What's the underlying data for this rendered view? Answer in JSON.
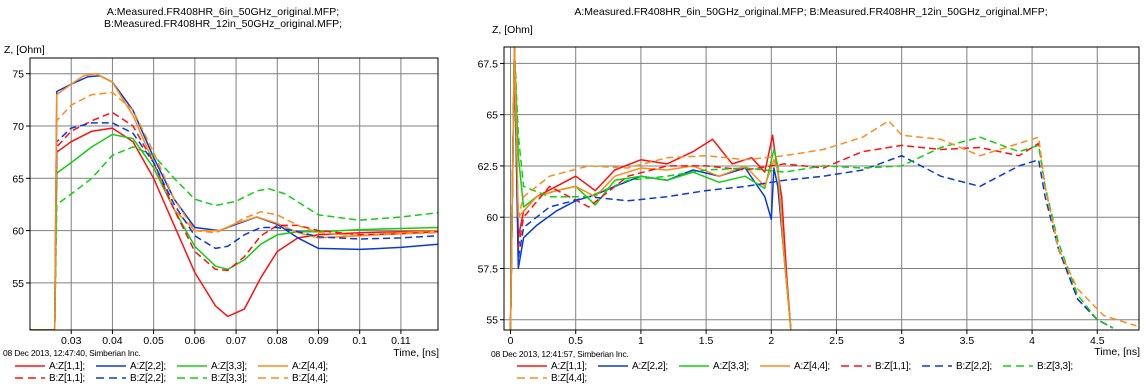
{
  "chart_data": [
    {
      "type": "line",
      "title": "A:Measured.FR408HR_6in_50GHz_original.MFP;\nB:Measured.FR408HR_12in_50GHz_original.MFP;",
      "title_lines": [
        "A:Measured.FR408HR_6in_50GHz_original.MFP;",
        "B:Measured.FR408HR_12in_50GHz_original.MFP;"
      ],
      "ylabel": "Z, [Ohm]",
      "xlabel": "Time, [ns]",
      "footer": "08 Dec 2013, 12:47:40, Simberian Inc.",
      "xlim": [
        0.02,
        0.119
      ],
      "ylim": [
        50.5,
        76.5
      ],
      "xticks": [
        0.03,
        0.04,
        0.05,
        0.06,
        0.07,
        0.08,
        0.09,
        0.1,
        0.11
      ],
      "xtick_labels": [
        "0.03",
        "0.04",
        "0.05",
        "0.06",
        "0.07",
        "0.08",
        "0.09",
        "0.1",
        "0.11"
      ],
      "yticks": [
        55,
        60,
        65,
        70,
        75
      ],
      "ytick_labels": [
        "55",
        "60",
        "65",
        "70",
        "75"
      ],
      "grid": true,
      "legend_position": "bottom",
      "legend_rows": [
        [
          0,
          1,
          2,
          3
        ],
        [
          4,
          5,
          6,
          7
        ]
      ],
      "series": [
        {
          "name": "A:Z[1,1];",
          "color": "#ff1010",
          "dash": false,
          "x": [
            0.02,
            0.026,
            0.0265,
            0.03,
            0.035,
            0.04,
            0.045,
            0.05,
            0.055,
            0.06,
            0.065,
            0.068,
            0.072,
            0.076,
            0.08,
            0.085,
            0.09,
            0.1,
            0.11,
            0.119
          ],
          "y": [
            50.5,
            50.5,
            67.5,
            68.5,
            69.5,
            69.8,
            68.5,
            65.0,
            60.5,
            56.0,
            52.8,
            51.8,
            52.5,
            55.5,
            58.0,
            59.3,
            59.6,
            59.8,
            59.9,
            60.0
          ]
        },
        {
          "name": "A:Z[2,2];",
          "color": "#0a3ad6",
          "dash": false,
          "x": [
            0.02,
            0.026,
            0.0265,
            0.03,
            0.034,
            0.037,
            0.04,
            0.045,
            0.05,
            0.055,
            0.06,
            0.066,
            0.07,
            0.075,
            0.08,
            0.085,
            0.09,
            0.1,
            0.11,
            0.119
          ],
          "y": [
            50.5,
            50.5,
            73.3,
            74.0,
            74.7,
            74.8,
            74.2,
            71.5,
            67.0,
            63.0,
            60.3,
            60.0,
            60.6,
            61.3,
            60.6,
            59.3,
            58.3,
            58.2,
            58.4,
            58.7
          ]
        },
        {
          "name": "A:Z[3,3];",
          "color": "#10d010",
          "dash": false,
          "x": [
            0.02,
            0.026,
            0.0265,
            0.03,
            0.035,
            0.04,
            0.045,
            0.05,
            0.055,
            0.06,
            0.065,
            0.068,
            0.072,
            0.076,
            0.08,
            0.085,
            0.09,
            0.1,
            0.11,
            0.119
          ],
          "y": [
            50.5,
            50.5,
            65.5,
            66.5,
            68.0,
            69.2,
            68.8,
            66.0,
            62.0,
            58.5,
            56.6,
            56.3,
            57.2,
            58.7,
            59.6,
            59.9,
            59.9,
            60.1,
            60.2,
            60.3
          ]
        },
        {
          "name": "A:Z[4,4];",
          "color": "#ff8c1a",
          "dash": false,
          "x": [
            0.02,
            0.026,
            0.0265,
            0.03,
            0.033,
            0.036,
            0.04,
            0.045,
            0.05,
            0.055,
            0.06,
            0.066,
            0.07,
            0.075,
            0.08,
            0.085,
            0.09,
            0.1,
            0.11,
            0.119
          ],
          "y": [
            50.5,
            50.5,
            73.0,
            74.0,
            74.8,
            75.0,
            74.2,
            71.0,
            66.5,
            62.0,
            60.0,
            60.0,
            60.7,
            61.3,
            60.7,
            59.8,
            59.3,
            59.5,
            59.8,
            60.0
          ]
        },
        {
          "name": "B:Z[1,1];",
          "color": "#ff1010",
          "dash": true,
          "x": [
            0.02,
            0.026,
            0.0265,
            0.03,
            0.035,
            0.04,
            0.045,
            0.05,
            0.055,
            0.06,
            0.065,
            0.068,
            0.072,
            0.076,
            0.08,
            0.085,
            0.09,
            0.1,
            0.11,
            0.119
          ],
          "y": [
            50.5,
            50.5,
            68.0,
            69.5,
            70.5,
            71.3,
            70.0,
            66.5,
            62.0,
            58.0,
            56.3,
            56.2,
            57.5,
            59.5,
            60.5,
            60.5,
            60.0,
            59.6,
            59.7,
            59.9
          ]
        },
        {
          "name": "B:Z[2,2];",
          "color": "#0a3ad6",
          "dash": true,
          "x": [
            0.02,
            0.026,
            0.0265,
            0.03,
            0.035,
            0.04,
            0.045,
            0.05,
            0.055,
            0.06,
            0.065,
            0.068,
            0.072,
            0.076,
            0.08,
            0.085,
            0.09,
            0.1,
            0.11,
            0.119
          ],
          "y": [
            50.5,
            50.5,
            68.5,
            69.8,
            70.3,
            70.3,
            69.3,
            66.5,
            62.5,
            59.5,
            58.3,
            58.5,
            59.6,
            60.3,
            60.3,
            59.9,
            59.4,
            59.2,
            59.3,
            59.5
          ]
        },
        {
          "name": "B:Z[3,3];",
          "color": "#10d010",
          "dash": true,
          "x": [
            0.02,
            0.026,
            0.0265,
            0.03,
            0.035,
            0.04,
            0.045,
            0.05,
            0.055,
            0.06,
            0.065,
            0.07,
            0.075,
            0.078,
            0.082,
            0.086,
            0.09,
            0.1,
            0.11,
            0.119
          ],
          "y": [
            50.5,
            50.5,
            62.5,
            63.5,
            65.0,
            67.2,
            68.0,
            67.2,
            65.0,
            63.0,
            62.4,
            62.8,
            63.8,
            64.0,
            63.5,
            62.5,
            61.5,
            61.0,
            61.3,
            61.7
          ]
        },
        {
          "name": "B:Z[4,4];",
          "color": "#ff8c1a",
          "dash": true,
          "x": [
            0.02,
            0.026,
            0.0265,
            0.03,
            0.035,
            0.04,
            0.045,
            0.05,
            0.055,
            0.06,
            0.065,
            0.068,
            0.072,
            0.076,
            0.08,
            0.085,
            0.09,
            0.1,
            0.11,
            0.119
          ],
          "y": [
            50.5,
            50.5,
            70.5,
            72.0,
            73.0,
            73.2,
            71.5,
            67.5,
            63.0,
            60.0,
            59.8,
            60.3,
            61.2,
            61.8,
            61.5,
            60.5,
            59.8,
            59.5,
            59.7,
            59.8
          ]
        }
      ]
    },
    {
      "type": "line",
      "title": "A:Measured.FR408HR_6in_50GHz_original.MFP; B:Measured.FR408HR_12in_50GHz_original.MFP;",
      "title_lines": [
        "A:Measured.FR408HR_6in_50GHz_original.MFP; B:Measured.FR408HR_12in_50GHz_original.MFP;"
      ],
      "ylabel": "Z, [Ohm]",
      "xlabel": "Time, [ns]",
      "footer": "08 Dec 2013, 12:41:57, Simberian Inc.",
      "xlim": [
        -0.05,
        4.82
      ],
      "ylim": [
        54.5,
        68.3
      ],
      "xticks": [
        0,
        0.5,
        1,
        1.5,
        2,
        2.5,
        3,
        3.5,
        4,
        4.5
      ],
      "xtick_labels": [
        "0",
        "0.5",
        "1",
        "1.5",
        "2",
        "2.5",
        "3",
        "3.5",
        "4",
        "4.5"
      ],
      "yticks": [
        55,
        57.5,
        60,
        62.5,
        65,
        67.5
      ],
      "ytick_labels": [
        "55",
        "57.5",
        "60",
        "62.5",
        "65",
        "67.5"
      ],
      "grid": true,
      "legend_position": "bottom",
      "legend_rows": [
        [
          0,
          1,
          2,
          3,
          4,
          5,
          6
        ],
        [
          7
        ]
      ],
      "series": [
        {
          "name": "A:Z[1,1];",
          "color": "#ff1010",
          "dash": false,
          "x": [
            0.0,
            0.03,
            0.06,
            0.1,
            0.2,
            0.35,
            0.5,
            0.65,
            0.8,
            1.0,
            1.2,
            1.4,
            1.55,
            1.7,
            1.85,
            1.95,
            2.01,
            2.04,
            2.08,
            2.12,
            2.15
          ],
          "y": [
            54.5,
            68.3,
            59.0,
            60.3,
            61.0,
            61.5,
            62.0,
            61.3,
            62.3,
            62.8,
            62.6,
            63.2,
            63.8,
            62.6,
            62.9,
            62.2,
            64.0,
            62.6,
            61.0,
            57.0,
            54.5
          ]
        },
        {
          "name": "A:Z[2,2];",
          "color": "#0a3ad6",
          "dash": false,
          "x": [
            0.0,
            0.03,
            0.06,
            0.1,
            0.2,
            0.35,
            0.5,
            0.65,
            0.8,
            1.0,
            1.2,
            1.4,
            1.6,
            1.8,
            1.95,
            2.0,
            2.02,
            2.05,
            2.1,
            2.15
          ],
          "y": [
            54.5,
            68.3,
            57.5,
            59.0,
            59.6,
            60.3,
            60.8,
            61.1,
            61.5,
            62.0,
            61.8,
            62.3,
            62.0,
            62.4,
            61.0,
            59.9,
            62.4,
            61.5,
            58.0,
            54.5
          ]
        },
        {
          "name": "A:Z[3,3];",
          "color": "#10d010",
          "dash": false,
          "x": [
            0.0,
            0.03,
            0.06,
            0.1,
            0.2,
            0.35,
            0.5,
            0.65,
            0.8,
            1.0,
            1.2,
            1.4,
            1.6,
            1.8,
            1.95,
            2.02,
            2.05,
            2.1,
            2.15
          ],
          "y": [
            54.5,
            68.3,
            63.0,
            60.5,
            61.0,
            61.3,
            61.5,
            60.6,
            61.8,
            62.0,
            61.8,
            62.2,
            61.7,
            62.0,
            61.4,
            63.3,
            62.5,
            58.0,
            54.5
          ]
        },
        {
          "name": "A:Z[4,4];",
          "color": "#ff8c1a",
          "dash": false,
          "x": [
            0.0,
            0.03,
            0.06,
            0.1,
            0.2,
            0.35,
            0.5,
            0.65,
            0.8,
            1.0,
            1.2,
            1.4,
            1.6,
            1.8,
            1.95,
            2.02,
            2.05,
            2.1,
            2.15
          ],
          "y": [
            54.5,
            68.3,
            60.0,
            60.3,
            61.0,
            61.3,
            61.5,
            61.0,
            62.0,
            62.4,
            62.3,
            62.5,
            62.0,
            62.5,
            61.5,
            62.8,
            62.3,
            58.0,
            54.5
          ]
        },
        {
          "name": "B:Z[1,1];",
          "color": "#ff1010",
          "dash": true,
          "x": [
            0.0,
            0.03,
            0.06,
            0.1,
            0.3,
            0.6,
            0.9,
            1.2,
            1.5,
            1.8,
            2.1,
            2.4,
            2.7,
            3.0,
            3.3,
            3.6,
            3.9,
            4.05,
            4.1,
            4.2,
            4.35,
            4.5,
            4.62
          ],
          "y": [
            54.5,
            68.3,
            58.5,
            60.0,
            61.5,
            60.5,
            62.0,
            62.5,
            62.5,
            62.3,
            62.6,
            62.4,
            63.2,
            63.5,
            63.3,
            63.4,
            63.0,
            63.6,
            61.5,
            58.5,
            56.0,
            55.0,
            54.6
          ]
        },
        {
          "name": "B:Z[2,2];",
          "color": "#0a3ad6",
          "dash": true,
          "x": [
            0.0,
            0.03,
            0.06,
            0.1,
            0.3,
            0.6,
            0.9,
            1.2,
            1.5,
            1.8,
            2.1,
            2.4,
            2.7,
            3.0,
            3.3,
            3.6,
            3.9,
            4.05,
            4.1,
            4.2,
            4.35,
            4.5,
            4.62
          ],
          "y": [
            54.5,
            68.3,
            58.0,
            59.5,
            60.5,
            61.0,
            60.8,
            61.0,
            61.3,
            61.5,
            61.8,
            62.0,
            62.3,
            63.0,
            62.0,
            61.5,
            62.5,
            62.8,
            61.0,
            58.5,
            56.0,
            55.0,
            54.6
          ]
        },
        {
          "name": "B:Z[3,3];",
          "color": "#10d010",
          "dash": true,
          "x": [
            0.0,
            0.03,
            0.06,
            0.1,
            0.3,
            0.6,
            0.9,
            1.2,
            1.5,
            1.8,
            2.1,
            2.4,
            2.7,
            3.0,
            3.3,
            3.6,
            3.9,
            4.05,
            4.1,
            4.2,
            4.35,
            4.5,
            4.62
          ],
          "y": [
            54.5,
            68.3,
            64.0,
            61.5,
            61.0,
            61.0,
            61.8,
            62.0,
            62.3,
            62.4,
            62.2,
            62.5,
            62.4,
            62.5,
            63.4,
            63.9,
            63.2,
            63.5,
            61.5,
            58.8,
            56.2,
            55.0,
            54.6
          ]
        },
        {
          "name": "B:Z[4,4];",
          "color": "#ff8c1a",
          "dash": true,
          "x": [
            0.0,
            0.03,
            0.06,
            0.1,
            0.3,
            0.6,
            0.9,
            1.2,
            1.5,
            1.8,
            2.1,
            2.4,
            2.7,
            2.9,
            3.0,
            3.3,
            3.6,
            3.9,
            4.05,
            4.1,
            4.2,
            4.35,
            4.55,
            4.8
          ],
          "y": [
            54.5,
            68.3,
            60.0,
            61.0,
            62.0,
            62.5,
            62.4,
            62.9,
            63.0,
            62.8,
            63.0,
            63.3,
            63.9,
            64.7,
            64.0,
            63.8,
            63.0,
            63.6,
            63.9,
            61.5,
            58.5,
            56.5,
            55.2,
            54.7
          ]
        }
      ]
    }
  ]
}
